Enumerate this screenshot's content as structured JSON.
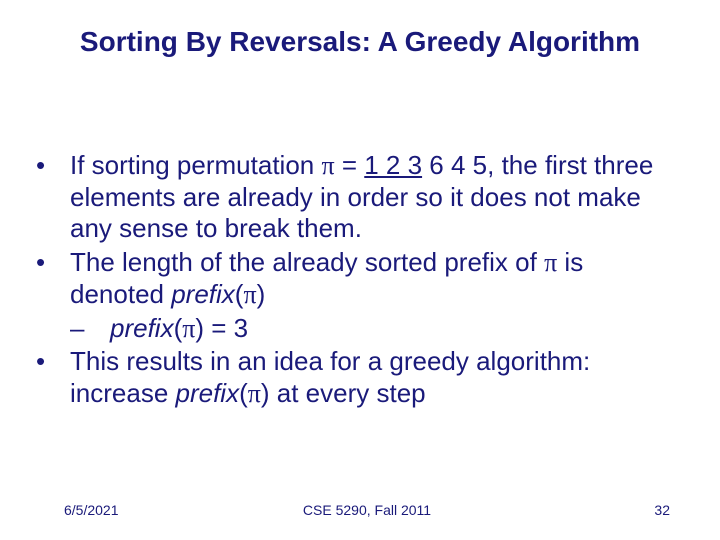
{
  "colors": {
    "text": "#1a1a7a",
    "background": "#ffffff"
  },
  "title": "Sorting By Reversals: A Greedy Algorithm",
  "bullets": {
    "b1_pre": "If sorting permutation ",
    "b1_pi": "π",
    "b1_eq": " = ",
    "b1_underlined": "1 2 3",
    "b1_post": " 6 4 5, the first three elements are already in order so it does not make any sense to break them.",
    "b2_pre": "The length of the already sorted prefix of ",
    "b2_pi": "π",
    "b2_post_a": " is denoted ",
    "b2_prefix": "prefix",
    "b2_post_b": "(",
    "b2_pi2": "π",
    "b2_post_c": ")",
    "sub_prefix": "prefix",
    "sub_open": "(",
    "sub_pi": "π",
    "sub_close": ") = 3",
    "b3_pre": "This results in an idea for a greedy algorithm: increase ",
    "b3_prefix": "prefix",
    "b3_open": "(",
    "b3_pi": "π",
    "b3_close": ") at every step"
  },
  "footer": {
    "date": "6/5/2021",
    "course": "CSE 5290, Fall 2011",
    "page": "32"
  },
  "typography": {
    "title_fontsize": 28,
    "body_fontsize": 26,
    "footer_fontsize": 14
  }
}
